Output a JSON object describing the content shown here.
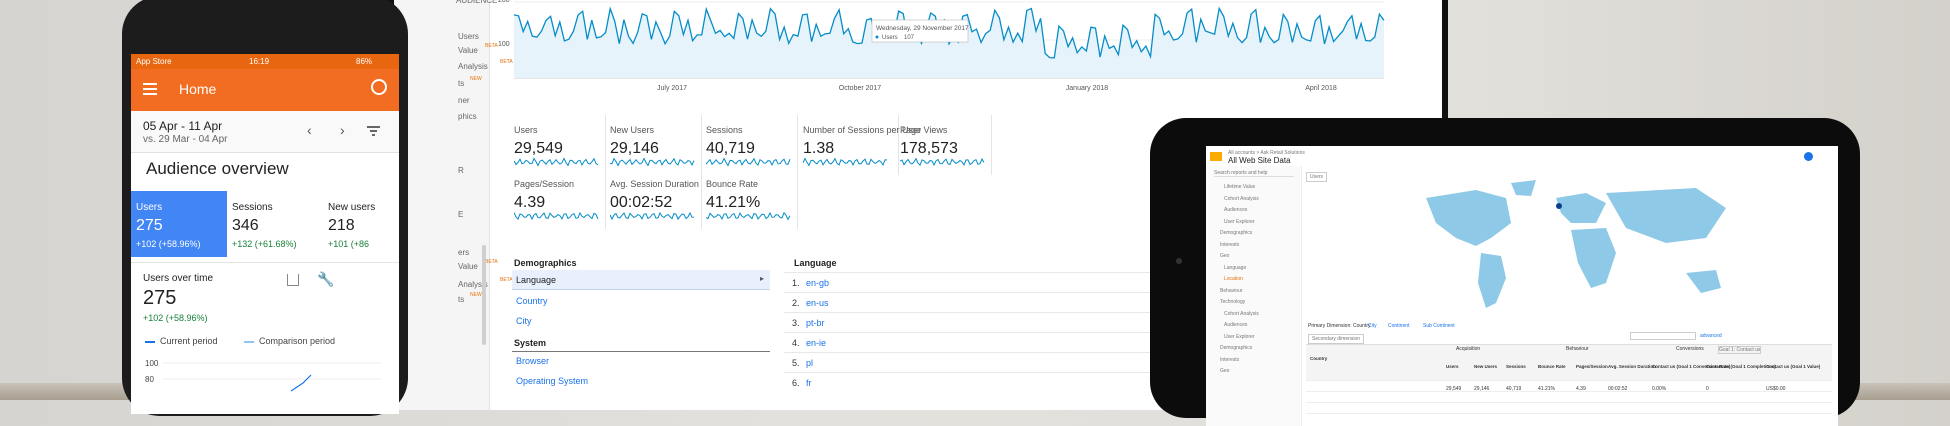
{
  "monitor": {
    "sidebar_items": [
      {
        "label": "AUDIENCE",
        "beta": ""
      },
      {
        "label": "Users",
        "beta": ""
      },
      {
        "label": "Value",
        "beta": "BETA"
      },
      {
        "label": "Analysis",
        "beta": "BETA"
      },
      {
        "label": "ts",
        "beta": "NEW"
      },
      {
        "label": "ner",
        "beta": ""
      },
      {
        "label": "phics",
        "beta": ""
      },
      {
        "label": "R",
        "beta": ""
      },
      {
        "label": "E",
        "beta": ""
      },
      {
        "label": "ers",
        "beta": ""
      },
      {
        "label": "Value",
        "beta": "BETA"
      },
      {
        "label": "Analysis",
        "beta": "BETA"
      },
      {
        "label": "ts",
        "beta": "NEW"
      }
    ],
    "chart": {
      "y_max_label": "200",
      "y_mid_label": "100",
      "x_labels": [
        "July 2017",
        "October 2017",
        "January 2018",
        "April 2018"
      ],
      "tooltip_date": "Wednesday, 29 November 2017",
      "tooltip_metric": "Users",
      "tooltip_value": "107",
      "line_color": "#058dc7"
    },
    "metrics": [
      {
        "label": "Users",
        "value": "29,549"
      },
      {
        "label": "New Users",
        "value": "29,146"
      },
      {
        "label": "Sessions",
        "value": "40,719"
      },
      {
        "label": "Number of Sessions per User",
        "value": "1.38"
      },
      {
        "label": "Page Views",
        "value": "178,573"
      },
      {
        "label": "Pages/Session",
        "value": "4.39"
      },
      {
        "label": "Avg. Session Duration",
        "value": "00:02:52"
      },
      {
        "label": "Bounce Rate",
        "value": "41.21%"
      }
    ],
    "demographics": {
      "heading": "Demographics",
      "selected": "Language",
      "items": [
        "Country",
        "City"
      ],
      "system_heading": "System",
      "system_items": [
        "Browser",
        "Operating System"
      ]
    },
    "language": {
      "heading": "Language",
      "rows": [
        {
          "n": "1.",
          "code": "en-gb"
        },
        {
          "n": "2.",
          "code": "en-us"
        },
        {
          "n": "3.",
          "code": "pt-br"
        },
        {
          "n": "4.",
          "code": "en-ie"
        },
        {
          "n": "5.",
          "code": "pl"
        },
        {
          "n": "6.",
          "code": "fr"
        }
      ]
    }
  },
  "phone": {
    "status_carrier": "App Store",
    "status_time": "16:19",
    "status_battery": "86%",
    "title": "Home",
    "date_range": "05 Apr - 11 Apr",
    "compare_range": "vs. 29 Mar - 04 Apr",
    "section_title": "Audience overview",
    "stats": [
      {
        "label": "Users",
        "value": "275",
        "delta": "+102 (+58.96%)"
      },
      {
        "label": "Sessions",
        "value": "346",
        "delta": "+132 (+61.68%)"
      },
      {
        "label": "New users",
        "value": "218",
        "delta": "+101 (+86"
      }
    ],
    "card_title": "Users over time",
    "card_value": "275",
    "card_delta": "+102 (+58.96%)",
    "legend_current": "Current period",
    "legend_compare": "Comparison period",
    "axis_labels": [
      "100",
      "80"
    ],
    "accent": "#f26d21",
    "selected_tile": "#4285f4",
    "positive": "#188038"
  },
  "tablet": {
    "breadcrumb": "All accounts > Ask Retail Solutions",
    "property": "All Web Site Data",
    "search_placeholder": "Search reports and help",
    "sidebar_items": [
      "Lifetime Value",
      "Cohort Analysis",
      "Audiences",
      "User Explorer",
      "Demographics",
      "Interests",
      "Geo",
      "Language",
      "Location",
      "Behaviour",
      "Technology",
      "Cohort Analysis",
      "Audiences",
      "User Explorer",
      "Demographics",
      "Interests",
      "Geo"
    ],
    "users_chip": "Users",
    "table_tabs": [
      "Primary Dimension: Country",
      "City",
      "Continent",
      "Sub Continent"
    ],
    "secondary_dim": "Secondary dimension",
    "advanced": "advanced",
    "group_headers": [
      "Acquisition",
      "Behaviour",
      "Conversions"
    ],
    "ecommerce": "Goal 1: Contact us",
    "columns": [
      "Country",
      "Users",
      "New Users",
      "Sessions",
      "Bounce Rate",
      "Pages/Session",
      "Avg. Session Duration",
      "Contact us (Goal 1 Conversion Rate)",
      "Contact us (Goal 1 Completions)",
      "Contact us (Goal 1 Value)"
    ],
    "totals": [
      "29,549",
      "29,146",
      "40,719",
      "41.21%",
      "4.39",
      "00:02:52",
      "0.00%",
      "0",
      "US$0.00"
    ],
    "map_color": "#8fc9e8"
  }
}
